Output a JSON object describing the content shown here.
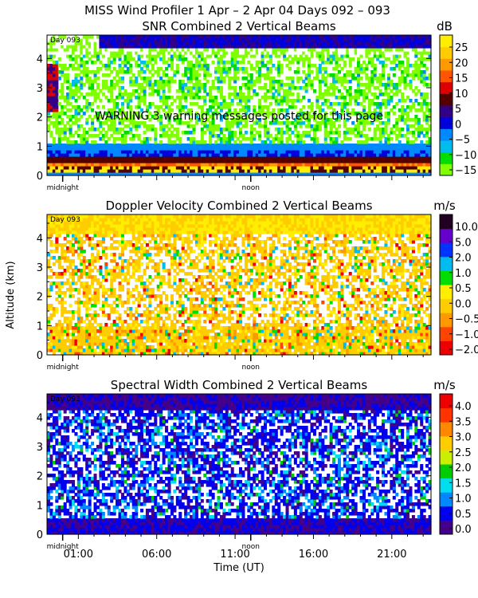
{
  "figure": {
    "title": "MISS Wind Profiler    1 Apr –   2 Apr 04 Days 092 – 093",
    "ylabel": "Altitude (km)",
    "xlabel": "Time (UT)",
    "time_ticks": [
      "01:00",
      "06:00",
      "11:00",
      "16:00",
      "21:00"
    ],
    "marker_midnight": "midnight",
    "marker_noon": "noon",
    "warning": "WARNING   3 warning messages posted for this page"
  },
  "colors": {
    "snr_scale": [
      "#80ff00",
      "#00dd00",
      "#00bbee",
      "#0088ff",
      "#0000dd",
      "#330088",
      "#550000",
      "#dd0000",
      "#ff5500",
      "#ff9900",
      "#ffcc00",
      "#ffee00"
    ],
    "doppler_scale": [
      "#ee0000",
      "#ff4400",
      "#ff9900",
      "#ffcc00",
      "#ffee00",
      "#00dd00",
      "#00bbee",
      "#0033ff",
      "#6600cc",
      "#220022"
    ],
    "width_scale": [
      "#440088",
      "#0000ee",
      "#0088ff",
      "#00ddee",
      "#00cc00",
      "#ccee00",
      "#ffcc00",
      "#ff8800",
      "#ff3300",
      "#ee0000"
    ]
  },
  "chart_data": [
    {
      "type": "heatmap",
      "title": "SNR Combined 2 Vertical Beams",
      "colorbar_label": "dB",
      "colorbar_ticks": [
        "25",
        "20",
        "15",
        "10",
        "5",
        "0",
        "−5",
        "−10",
        "−15"
      ],
      "day_label": "Day 093",
      "ylim": [
        0,
        4.8
      ],
      "y_ticks": [
        "0",
        "1",
        "2",
        "3",
        "4"
      ]
    },
    {
      "type": "heatmap",
      "title": "Doppler Velocity Combined 2 Vertical Beams",
      "colorbar_label": "m/s",
      "colorbar_ticks": [
        "10.0",
        "5.0",
        "2.0",
        "1.0",
        "0.5",
        "0.0",
        "−0.5",
        "−1.0",
        "−2.0"
      ],
      "day_label": "Day 093",
      "ylim": [
        0,
        4.8
      ],
      "y_ticks": [
        "0",
        "1",
        "2",
        "3",
        "4"
      ]
    },
    {
      "type": "heatmap",
      "title": "Spectral Width Combined 2 Vertical Beams",
      "colorbar_label": "m/s",
      "colorbar_ticks": [
        "4.0",
        "3.5",
        "3.0",
        "2.5",
        "2.0",
        "1.5",
        "1.0",
        "0.5",
        "0.0"
      ],
      "day_label": "Day 093",
      "ylim": [
        0,
        4.8
      ],
      "y_ticks": [
        "0",
        "1",
        "2",
        "3",
        "4"
      ]
    }
  ]
}
